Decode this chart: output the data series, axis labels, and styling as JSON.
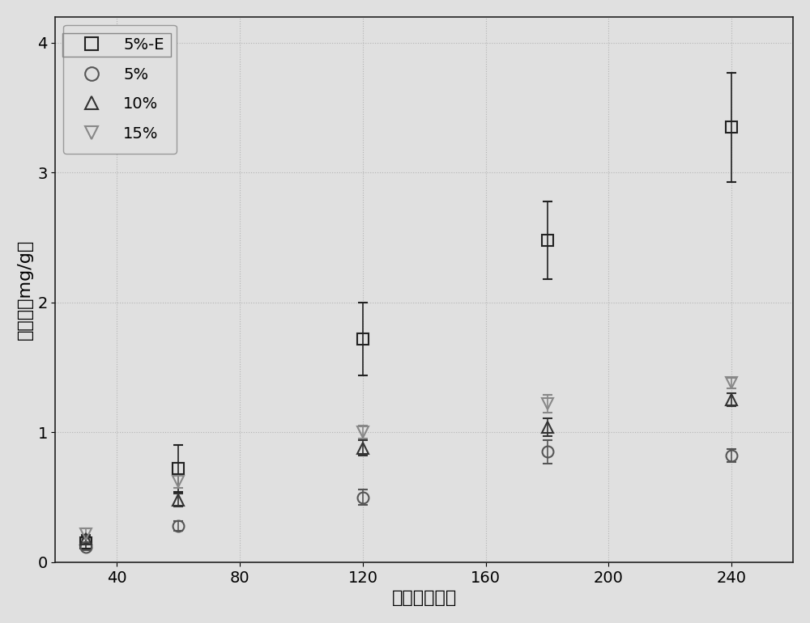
{
  "title": "",
  "xlabel": "时间（分钟）",
  "ylabel": "吸附量（mg/g）",
  "xlim": [
    20,
    260
  ],
  "ylim": [
    0,
    4.2
  ],
  "xticks": [
    40,
    80,
    120,
    160,
    200,
    240
  ],
  "yticks": [
    0,
    1,
    2,
    3,
    4
  ],
  "background_color": "#e0e0e0",
  "series_order": [
    "5%-E",
    "5%",
    "10%",
    "15%"
  ],
  "series": {
    "5%-E": {
      "x": [
        30,
        60,
        120,
        180,
        240
      ],
      "y": [
        0.15,
        0.72,
        1.72,
        2.48,
        3.35
      ],
      "yerr": [
        0.05,
        0.18,
        0.28,
        0.3,
        0.42
      ],
      "marker": "s",
      "color": "#222222",
      "markersize": 10,
      "fillstyle": "none",
      "linewidth": 0
    },
    "5%": {
      "x": [
        30,
        60,
        120,
        180,
        240
      ],
      "y": [
        0.12,
        0.28,
        0.5,
        0.85,
        0.82
      ],
      "yerr": [
        0.03,
        0.04,
        0.06,
        0.09,
        0.05
      ],
      "marker": "o",
      "color": "#555555",
      "markersize": 10,
      "fillstyle": "none",
      "linewidth": 0
    },
    "10%": {
      "x": [
        30,
        60,
        120,
        180,
        240
      ],
      "y": [
        0.18,
        0.48,
        0.88,
        1.04,
        1.25
      ],
      "yerr": [
        0.03,
        0.05,
        0.06,
        0.07,
        0.05
      ],
      "marker": "^",
      "color": "#333333",
      "markersize": 10,
      "fillstyle": "none",
      "linewidth": 0
    },
    "15%": {
      "x": [
        30,
        60,
        120,
        180,
        240
      ],
      "y": [
        0.22,
        0.62,
        1.0,
        1.22,
        1.38
      ],
      "yerr": [
        0.04,
        0.05,
        0.05,
        0.07,
        0.04
      ],
      "marker": "v",
      "color": "#888888",
      "markersize": 10,
      "fillstyle": "none",
      "linewidth": 0
    }
  },
  "legend_labels": [
    "5%-E",
    "5%",
    "10%",
    "15%"
  ],
  "legend_markers": [
    "s",
    "o",
    "^",
    "v"
  ],
  "legend_colors": [
    "#222222",
    "#555555",
    "#333333",
    "#888888"
  ],
  "font_size_axis_label": 16,
  "font_size_tick": 14,
  "font_size_legend": 14
}
